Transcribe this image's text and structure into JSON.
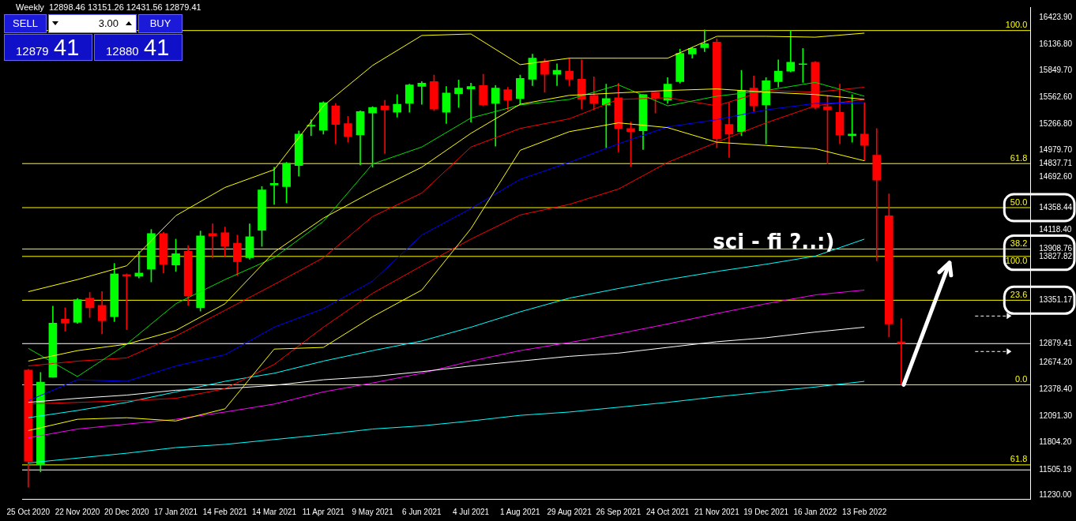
{
  "chart_data": {
    "type": "candlestick",
    "title": "Weekly  12898.46 13151.26 12431.56 12879.41",
    "categories": [
      "25 Oct 2020",
      null,
      null,
      null,
      "22 Nov 2020",
      null,
      null,
      null,
      "20 Dec 2020",
      null,
      null,
      null,
      "17 Jan 2021",
      null,
      null,
      null,
      "14 Feb 2021",
      null,
      null,
      null,
      "14 Mar 2021",
      null,
      null,
      null,
      "11 Apr 2021",
      null,
      null,
      null,
      "9 May 2021",
      null,
      null,
      null,
      "6 Jun 2021",
      null,
      null,
      null,
      "4 Jul 2021",
      null,
      null,
      null,
      "1 Aug 2021",
      null,
      null,
      null,
      "29 Aug 2021",
      null,
      null,
      null,
      "26 Sep 2021",
      null,
      null,
      null,
      "24 Oct 2021",
      null,
      null,
      null,
      "21 Nov 2021",
      null,
      null,
      null,
      "19 Dec 2021",
      null,
      null,
      null,
      "16 Jan 2022",
      null,
      null,
      null,
      "13 Feb 2022",
      null,
      null,
      null,
      null,
      null,
      null,
      null,
      null,
      null,
      null,
      null,
      null,
      null
    ],
    "ohlc": [
      [
        12592,
        12600,
        11318,
        11599
      ],
      [
        11564,
        12566,
        11484,
        12460
      ],
      [
        12513,
        13286,
        12513,
        13102
      ],
      [
        13146,
        13269,
        13014,
        13102
      ],
      [
        13111,
        13370,
        13100,
        13357
      ],
      [
        13374,
        13436,
        13163,
        13269
      ],
      [
        13295,
        13445,
        12987,
        13128
      ],
      [
        13172,
        13752,
        13119,
        13638
      ],
      [
        13630,
        13638,
        13031,
        13612
      ],
      [
        13612,
        13884,
        13594,
        13647
      ],
      [
        13690,
        14121,
        13550,
        14077
      ],
      [
        14077,
        14090,
        13647,
        13743
      ],
      [
        13734,
        14016,
        13664,
        13857
      ],
      [
        13884,
        13945,
        13295,
        13400
      ],
      [
        13269,
        14104,
        13233,
        14051
      ],
      [
        14077,
        14183,
        13814,
        14051
      ],
      [
        14086,
        14148,
        13831,
        13937
      ],
      [
        13972,
        14060,
        13620,
        13770
      ],
      [
        13814,
        14183,
        13796,
        14042
      ],
      [
        14112,
        14587,
        13937,
        14552
      ],
      [
        14604,
        14798,
        14394,
        14622
      ],
      [
        14587,
        14851,
        14411,
        14842
      ],
      [
        14816,
        15193,
        14701,
        15158
      ],
      [
        15245,
        15316,
        15141,
        15255
      ],
      [
        15202,
        15510,
        15158,
        15501
      ],
      [
        15466,
        15492,
        15053,
        15264
      ],
      [
        15273,
        15352,
        15070,
        15132
      ],
      [
        15150,
        15413,
        14824,
        15404
      ],
      [
        15387,
        15457,
        14798,
        15448
      ],
      [
        15466,
        15527,
        14947,
        15422
      ],
      [
        15396,
        15589,
        15343,
        15483
      ],
      [
        15492,
        15703,
        15396,
        15694
      ],
      [
        15677,
        15729,
        15483,
        15712
      ],
      [
        15729,
        15800,
        15413,
        15431
      ],
      [
        15396,
        15677,
        15273,
        15606
      ],
      [
        15598,
        15747,
        15448,
        15659
      ],
      [
        15650,
        15712,
        15290,
        15677
      ],
      [
        15686,
        15809,
        15466,
        15475
      ],
      [
        15492,
        15686,
        15027,
        15659
      ],
      [
        15642,
        15668,
        15422,
        15527
      ],
      [
        15545,
        15800,
        15483,
        15765
      ],
      [
        15756,
        16029,
        15686,
        15985
      ],
      [
        15950,
        15976,
        15615,
        15809
      ],
      [
        15809,
        15923,
        15686,
        15853
      ],
      [
        15844,
        15985,
        15686,
        15756
      ],
      [
        15756,
        15967,
        15431,
        15536
      ],
      [
        15580,
        15782,
        15422,
        15492
      ],
      [
        15475,
        15703,
        15009,
        15545
      ],
      [
        15554,
        15712,
        14965,
        15220
      ],
      [
        15220,
        15290,
        14807,
        15185
      ],
      [
        15194,
        15589,
        14991,
        15589
      ],
      [
        15615,
        15615,
        15387,
        15554
      ],
      [
        15527,
        15773,
        15492,
        15703
      ],
      [
        15729,
        16081,
        15712,
        16037
      ],
      [
        16029,
        16099,
        15985,
        16090
      ],
      [
        16099,
        16292,
        16055,
        16143
      ],
      [
        16160,
        16195,
        15009,
        15106
      ],
      [
        15264,
        15501,
        14904,
        15158
      ],
      [
        15185,
        15853,
        15141,
        15633
      ],
      [
        15659,
        15791,
        15404,
        15466
      ],
      [
        15475,
        15773,
        15053,
        15738
      ],
      [
        15729,
        15967,
        15668,
        15844
      ],
      [
        15844,
        16283,
        15835,
        15940
      ],
      [
        15915,
        16090,
        15721,
        15923
      ],
      [
        15941,
        15950,
        15431,
        15448
      ],
      [
        15457,
        15580,
        14833,
        15422
      ],
      [
        15396,
        15703,
        15053,
        15150
      ],
      [
        15141,
        15589,
        15070,
        15158
      ],
      [
        15158,
        15501,
        14868,
        15035
      ],
      [
        14930,
        15220,
        13779,
        14658
      ],
      [
        14271,
        14508,
        12952,
        13093
      ],
      [
        12898.46,
        13151.26,
        12431.56,
        12879.41
      ],
      null,
      null,
      null,
      null,
      null,
      null,
      null,
      null,
      null,
      null
    ],
    "series": [
      {
        "type": "line",
        "color": "#ffff00",
        "x": [
          "25 Oct 2020",
          "22 Nov 2020",
          "20 Dec 2020",
          "17 Jan 2021",
          "14 Feb 2021",
          "14 Mar 2021",
          "11 Apr 2021",
          "9 May 2021",
          "6 Jun 2021",
          "4 Jul 2021",
          "1 Aug 2021",
          "29 Aug 2021",
          "26 Sep 2021",
          "24 Oct 2021",
          "21 Nov 2021",
          "19 Dec 2021",
          "16 Jan 2022",
          "13 Feb 2022"
        ],
        "values": [
          13444,
          13576,
          13726,
          14271,
          14578,
          14772,
          15466,
          15905,
          16231,
          16248,
          15914,
          15984,
          15984,
          15984,
          16222,
          16222,
          16213,
          16257
        ]
      },
      {
        "type": "line",
        "color": "#ffff00",
        "x": [
          "25 Oct 2020",
          "22 Nov 2020",
          "20 Dec 2020",
          "17 Jan 2021",
          "14 Feb 2021",
          "14 Mar 2021",
          "11 Apr 2021",
          "9 May 2021",
          "6 Jun 2021",
          "4 Jul 2021",
          "1 Aug 2021",
          "29 Aug 2021",
          "26 Sep 2021",
          "24 Oct 2021",
          "21 Nov 2021",
          "19 Dec 2021",
          "16 Jan 2022",
          "13 Feb 2022"
        ],
        "values": [
          12689,
          12803,
          12873,
          13023,
          13313,
          13875,
          14244,
          14534,
          14798,
          15167,
          15483,
          15580,
          15607,
          15633,
          15650,
          15615,
          15589,
          15536
        ]
      },
      {
        "type": "line",
        "color": "#ffff00",
        "x": [
          "25 Oct 2020",
          "22 Nov 2020",
          "20 Dec 2020",
          "17 Jan 2021",
          "14 Feb 2021",
          "14 Mar 2021",
          "11 Apr 2021",
          "9 May 2021",
          "6 Jun 2021",
          "4 Jul 2021",
          "1 Aug 2021",
          "29 Aug 2021",
          "26 Sep 2021",
          "24 Oct 2021",
          "21 Nov 2021",
          "19 Dec 2021",
          "16 Jan 2022",
          "13 Feb 2022"
        ],
        "values": [
          11933,
          12056,
          12073,
          12038,
          12170,
          12820,
          12838,
          13172,
          13462,
          14130,
          14982,
          15185,
          15281,
          15229,
          15070,
          15035,
          15000,
          14868
        ]
      },
      {
        "type": "line",
        "color": "#00e000",
        "x": [
          "25 Oct 2020",
          "22 Nov 2020",
          "20 Dec 2020",
          "17 Jan 2021",
          "14 Feb 2021",
          "14 Mar 2021",
          "11 Apr 2021",
          "9 May 2021",
          "6 Jun 2021",
          "4 Jul 2021",
          "1 Aug 2021",
          "29 Aug 2021",
          "26 Sep 2021",
          "24 Oct 2021",
          "21 Nov 2021",
          "19 Dec 2021",
          "16 Jan 2022",
          "13 Feb 2022"
        ],
        "values": [
          12828,
          12521,
          12873,
          13313,
          13576,
          13814,
          14209,
          14833,
          15018,
          15334,
          15475,
          15536,
          15694,
          15466,
          15571,
          15633,
          15721,
          15571
        ]
      },
      {
        "type": "line",
        "color": "#ff0000",
        "x": [
          "25 Oct 2020",
          "22 Nov 2020",
          "20 Dec 2020",
          "17 Jan 2021",
          "14 Feb 2021",
          "14 Mar 2021",
          "11 Apr 2021",
          "9 May 2021",
          "6 Jun 2021",
          "4 Jul 2021",
          "1 Aug 2021",
          "29 Aug 2021",
          "26 Sep 2021",
          "24 Oct 2021",
          "21 Nov 2021",
          "19 Dec 2021",
          "16 Jan 2022",
          "13 Feb 2022"
        ],
        "values": [
          12636,
          12689,
          12724,
          12961,
          13242,
          13523,
          13814,
          14262,
          14517,
          15018,
          15220,
          15325,
          15536,
          15554,
          15466,
          15633,
          15615,
          15668
        ]
      },
      {
        "type": "line",
        "color": "#0000ff",
        "x": [
          "25 Oct 2020",
          "22 Nov 2020",
          "20 Dec 2020",
          "17 Jan 2021",
          "14 Feb 2021",
          "14 Mar 2021",
          "11 Apr 2021",
          "9 May 2021",
          "6 Jun 2021",
          "4 Jul 2021",
          "1 Aug 2021",
          "29 Aug 2021",
          "26 Sep 2021",
          "24 Oct 2021",
          "21 Nov 2021",
          "19 Dec 2021",
          "16 Jan 2022",
          "13 Feb 2022"
        ],
        "values": [
          12258,
          12486,
          12469,
          12636,
          12759,
          13058,
          13260,
          13559,
          14060,
          14350,
          14666,
          14851,
          15053,
          15237,
          15316,
          15422,
          15492,
          15501
        ]
      },
      {
        "type": "line",
        "color": "#ff0000",
        "x": [
          "25 Oct 2020",
          "22 Nov 2020",
          "20 Dec 2020",
          "17 Jan 2021",
          "14 Feb 2021",
          "14 Mar 2021",
          "11 Apr 2021",
          "9 May 2021",
          "6 Jun 2021",
          "4 Jul 2021",
          "1 Aug 2021",
          "29 Aug 2021",
          "26 Sep 2021",
          "24 Oct 2021",
          "21 Nov 2021",
          "19 Dec 2021",
          "16 Jan 2022",
          "13 Feb 2022"
        ],
        "values": [
          12222,
          12240,
          12258,
          12284,
          12389,
          12653,
          13058,
          13427,
          13726,
          14016,
          14279,
          14394,
          14561,
          14851,
          15070,
          15281,
          15466,
          15536
        ]
      },
      {
        "type": "line",
        "color": "#00ffff",
        "x": [
          "25 Oct 2020",
          "22 Nov 2020",
          "20 Dec 2020",
          "17 Jan 2021",
          "14 Feb 2021",
          "14 Mar 2021",
          "11 Apr 2021",
          "9 May 2021",
          "6 Jun 2021",
          "4 Jul 2021",
          "1 Aug 2021",
          "29 Aug 2021",
          "26 Sep 2021",
          "24 Oct 2021",
          "21 Nov 2021",
          "19 Dec 2021",
          "16 Jan 2022",
          "13 Feb 2022"
        ],
        "values": [
          12073,
          12152,
          12240,
          12354,
          12469,
          12557,
          12689,
          12803,
          12908,
          13058,
          13225,
          13374,
          13479,
          13576,
          13664,
          13743,
          13831,
          14016
        ]
      },
      {
        "type": "line",
        "color": "#ffffff",
        "x": [
          "25 Oct 2020",
          "22 Nov 2020",
          "20 Dec 2020",
          "17 Jan 2021",
          "14 Feb 2021",
          "14 Mar 2021",
          "11 Apr 2021",
          "9 May 2021",
          "6 Jun 2021",
          "4 Jul 2021",
          "1 Aug 2021",
          "29 Aug 2021",
          "26 Sep 2021",
          "24 Oct 2021",
          "21 Nov 2021",
          "19 Dec 2021",
          "16 Jan 2022",
          "13 Feb 2022"
        ],
        "values": [
          12240,
          12284,
          12319,
          12372,
          12389,
          12425,
          12486,
          12521,
          12574,
          12636,
          12689,
          12741,
          12776,
          12838,
          12900,
          12943,
          13005,
          13058
        ]
      },
      {
        "type": "line",
        "color": "#ff00ff",
        "x": [
          "25 Oct 2020",
          "22 Nov 2020",
          "20 Dec 2020",
          "17 Jan 2021",
          "14 Feb 2021",
          "14 Mar 2021",
          "11 Apr 2021",
          "9 May 2021",
          "6 Jun 2021",
          "4 Jul 2021",
          "1 Aug 2021",
          "29 Aug 2021",
          "26 Sep 2021",
          "24 Oct 2021",
          "21 Nov 2021",
          "19 Dec 2021",
          "16 Jan 2022",
          "13 Feb 2022"
        ],
        "values": [
          11854,
          11950,
          12003,
          12056,
          12135,
          12222,
          12354,
          12451,
          12557,
          12689,
          12803,
          12891,
          12987,
          13093,
          13207,
          13313,
          13409,
          13462
        ]
      },
      {
        "type": "line",
        "color": "#00ffff",
        "x": [
          "25 Oct 2020",
          "22 Nov 2020",
          "20 Dec 2020",
          "17 Jan 2021",
          "14 Feb 2021",
          "14 Mar 2021",
          "11 Apr 2021",
          "9 May 2021",
          "6 Jun 2021",
          "4 Jul 2021",
          "1 Aug 2021",
          "29 Aug 2021",
          "26 Sep 2021",
          "24 Oct 2021",
          "21 Nov 2021",
          "19 Dec 2021",
          "16 Jan 2022",
          "13 Feb 2022"
        ],
        "values": [
          11581,
          11634,
          11687,
          11748,
          11783,
          11836,
          11889,
          11950,
          11985,
          12038,
          12099,
          12135,
          12187,
          12240,
          12301,
          12354,
          12407,
          12469
        ]
      }
    ],
    "ylim": [
      11190,
      16540
    ],
    "yticks": [
      {
        "value": 16423.9,
        "label": "16423.90"
      },
      {
        "value": 16136.8,
        "label": "16136.80"
      },
      {
        "value": 15849.7,
        "label": "15849.70"
      },
      {
        "value": 15562.6,
        "label": "15562.60"
      },
      {
        "value": 15266.8,
        "label": "15266.80"
      },
      {
        "value": 14979.7,
        "label": "14979.70"
      },
      {
        "value": 14837.71,
        "label": "14837.71"
      },
      {
        "value": 14692.6,
        "label": "14692.60"
      },
      {
        "value": 14358.44,
        "label": "14358.44"
      },
      {
        "value": 14118.4,
        "label": "14118.40"
      },
      {
        "value": 13908.76,
        "label": "13908.76"
      },
      {
        "value": 13827.82,
        "label": "13827.82"
      },
      {
        "value": 13351.17,
        "label": "13351.17"
      },
      {
        "value": 12879.41,
        "label": "12879.41"
      },
      {
        "value": 12674.2,
        "label": "12674.20"
      },
      {
        "value": 12378.4,
        "label": "12378.40"
      },
      {
        "value": 12091.3,
        "label": "12091.30"
      },
      {
        "value": 11804.2,
        "label": "11804.20"
      },
      {
        "value": 11505.19,
        "label": "11505.19"
      },
      {
        "value": 11230,
        "label": "11230.00"
      }
    ],
    "ref_lines": [
      {
        "axis": "y",
        "value": 16285,
        "color": "#ffff00"
      },
      {
        "axis": "y",
        "value": 14837.71,
        "color": "#ffff00"
      },
      {
        "axis": "y",
        "value": 14358.44,
        "color": "#ffff00"
      },
      {
        "axis": "y",
        "value": 13908.76,
        "color": "#ffff00"
      },
      {
        "axis": "y",
        "value": 13827.82,
        "color": "#ffff00"
      },
      {
        "axis": "y",
        "value": 13351.17,
        "color": "#ffff00"
      },
      {
        "axis": "y",
        "value": 12431.56,
        "color": "#ffff00"
      },
      {
        "axis": "y",
        "value": 11560,
        "color": "#ffff00"
      },
      {
        "axis": "y",
        "value": 12879.41,
        "color": "#ffffff"
      },
      {
        "axis": "y",
        "value": 11505.19,
        "color": "#ffffff"
      }
    ],
    "annotations": [
      "sci - fi ?..:)",
      "SELL",
      "3.00",
      "BUY",
      "12879",
      "41",
      "12880",
      "41",
      {
        "text": "100.0",
        "y": 16285
      },
      {
        "text": "61.8",
        "y": 14837.71
      },
      {
        "text": "50.0",
        "y": 14358.44
      },
      {
        "text": "38.2",
        "y": 13908.76
      },
      {
        "text": "100.0",
        "y": 13827.82
      },
      {
        "text": "23.6",
        "y": 13351.17
      },
      {
        "text": "0.0",
        "y": 12431.56
      },
      {
        "text": "61.8",
        "y": 11560
      }
    ]
  }
}
